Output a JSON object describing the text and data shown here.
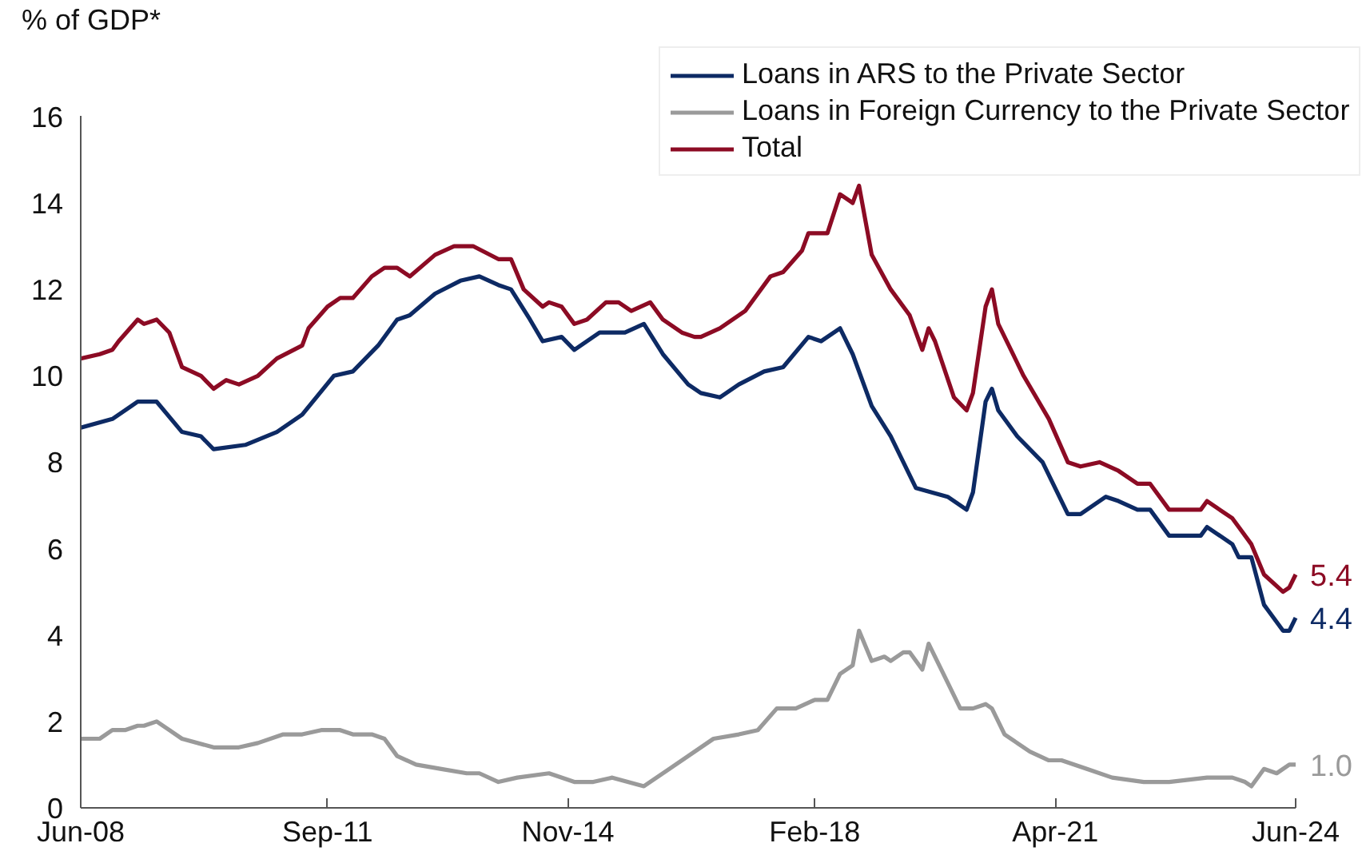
{
  "chart_data": {
    "type": "line",
    "ylabel": "% of GDP*",
    "legend": "top right",
    "xlim": [
      "2008-06",
      "2024-06"
    ],
    "ylim": [
      0,
      16
    ],
    "xticks": [
      {
        "value": "2008-06",
        "label": "Jun-08"
      },
      {
        "value": "2011-09",
        "label": "Sep-11"
      },
      {
        "value": "2014-11",
        "label": "Nov-14"
      },
      {
        "value": "2018-02",
        "label": "Feb-18"
      },
      {
        "value": "2021-04",
        "label": "Apr-21"
      },
      {
        "value": "2024-06",
        "label": "Jun-24"
      }
    ],
    "yticks": [
      0,
      2,
      4,
      6,
      8,
      10,
      12,
      14,
      16
    ],
    "annotations": [
      {
        "text": "5.4",
        "x": "2024-06",
        "y": 5.4
      },
      {
        "text": "4.4",
        "x": "2024-06",
        "y": 4.4
      },
      {
        "text": "1.0",
        "x": "2024-06",
        "y": 1.0
      }
    ],
    "series": [
      {
        "name": "Loans in ARS to the Private Sector",
        "color": "#0d2a64",
        "x": [
          "2008-06",
          "2008-11",
          "2009-03",
          "2009-06",
          "2009-10",
          "2010-01",
          "2010-03",
          "2010-08",
          "2011-01",
          "2011-05",
          "2011-10",
          "2012-01",
          "2012-05",
          "2012-08",
          "2012-10",
          "2013-02",
          "2013-06",
          "2013-09",
          "2013-12",
          "2014-02",
          "2014-05",
          "2014-07",
          "2014-10",
          "2014-12",
          "2015-04",
          "2015-08",
          "2015-11",
          "2016-02",
          "2016-06",
          "2016-08",
          "2016-11",
          "2017-02",
          "2017-06",
          "2017-09",
          "2018-01",
          "2018-03",
          "2018-06",
          "2018-08",
          "2018-11",
          "2019-02",
          "2019-06",
          "2019-11",
          "2020-02",
          "2020-03",
          "2020-05",
          "2020-06",
          "2020-07",
          "2020-10",
          "2021-02",
          "2021-06",
          "2021-08",
          "2021-12",
          "2022-02",
          "2022-05",
          "2022-07",
          "2022-10",
          "2023-03",
          "2023-04",
          "2023-08",
          "2023-09",
          "2023-11",
          "2024-01",
          "2024-04",
          "2024-05",
          "2024-06"
        ],
        "values": [
          8.8,
          9.0,
          9.4,
          9.4,
          8.7,
          8.6,
          8.3,
          8.4,
          8.7,
          9.1,
          10.0,
          10.1,
          10.7,
          11.3,
          11.4,
          11.9,
          12.2,
          12.3,
          12.1,
          12.0,
          11.3,
          10.8,
          10.9,
          10.6,
          11.0,
          11.0,
          11.2,
          10.5,
          9.8,
          9.6,
          9.5,
          9.8,
          10.1,
          10.2,
          10.9,
          10.8,
          11.1,
          10.5,
          9.3,
          8.6,
          7.4,
          7.2,
          6.9,
          7.3,
          9.4,
          9.7,
          9.2,
          8.6,
          8.0,
          6.8,
          6.8,
          7.2,
          7.1,
          6.9,
          6.9,
          6.3,
          6.3,
          6.5,
          6.1,
          5.8,
          5.8,
          4.7,
          4.1,
          4.1,
          4.4
        ]
      },
      {
        "name": "Loans in Foreign Currency to the Private Sector",
        "color": "#9a9a9a",
        "x": [
          "2008-06",
          "2008-09",
          "2008-11",
          "2009-01",
          "2009-03",
          "2009-04",
          "2009-06",
          "2009-08",
          "2009-10",
          "2010-03",
          "2010-07",
          "2010-10",
          "2011-02",
          "2011-05",
          "2011-08",
          "2011-11",
          "2012-01",
          "2012-04",
          "2012-06",
          "2012-08",
          "2012-11",
          "2013-03",
          "2013-07",
          "2013-09",
          "2013-12",
          "2014-03",
          "2014-08",
          "2014-12",
          "2015-03",
          "2015-06",
          "2015-11",
          "2016-03",
          "2016-10",
          "2017-02",
          "2017-05",
          "2017-08",
          "2017-11",
          "2018-02",
          "2018-04",
          "2018-06",
          "2018-08",
          "2018-09",
          "2018-11",
          "2019-01",
          "2019-02",
          "2019-04",
          "2019-05",
          "2019-07",
          "2019-08",
          "2019-11",
          "2020-01",
          "2020-03",
          "2020-05",
          "2020-06",
          "2020-08",
          "2020-12",
          "2021-03",
          "2021-05",
          "2021-09",
          "2022-01",
          "2022-06",
          "2022-10",
          "2023-04",
          "2023-08",
          "2023-10",
          "2023-11",
          "2024-01",
          "2024-03",
          "2024-05",
          "2024-06"
        ],
        "values": [
          1.6,
          1.6,
          1.8,
          1.8,
          1.9,
          1.9,
          2.0,
          1.8,
          1.6,
          1.4,
          1.4,
          1.5,
          1.7,
          1.7,
          1.8,
          1.8,
          1.7,
          1.7,
          1.6,
          1.2,
          1.0,
          0.9,
          0.8,
          0.8,
          0.6,
          0.7,
          0.8,
          0.6,
          0.6,
          0.7,
          0.5,
          0.9,
          1.6,
          1.7,
          1.8,
          2.3,
          2.3,
          2.5,
          2.5,
          3.1,
          3.3,
          4.1,
          3.4,
          3.5,
          3.4,
          3.6,
          3.6,
          3.2,
          3.8,
          2.9,
          2.3,
          2.3,
          2.4,
          2.3,
          1.7,
          1.3,
          1.1,
          1.1,
          0.9,
          0.7,
          0.6,
          0.6,
          0.7,
          0.7,
          0.6,
          0.5,
          0.9,
          0.8,
          1.0,
          1.0
        ]
      },
      {
        "name": "Total",
        "color": "#8c0b24",
        "x": [
          "2008-06",
          "2008-09",
          "2008-11",
          "2008-12",
          "2009-03",
          "2009-04",
          "2009-06",
          "2009-08",
          "2009-10",
          "2010-01",
          "2010-03",
          "2010-05",
          "2010-07",
          "2010-10",
          "2011-01",
          "2011-05",
          "2011-06",
          "2011-09",
          "2011-11",
          "2012-01",
          "2012-04",
          "2012-06",
          "2012-08",
          "2012-10",
          "2013-02",
          "2013-05",
          "2013-08",
          "2013-12",
          "2014-02",
          "2014-04",
          "2014-07",
          "2014-08",
          "2014-10",
          "2014-12",
          "2015-02",
          "2015-05",
          "2015-07",
          "2015-09",
          "2015-12",
          "2016-02",
          "2016-05",
          "2016-07",
          "2016-08",
          "2016-11",
          "2017-03",
          "2017-07",
          "2017-09",
          "2017-12",
          "2018-01",
          "2018-04",
          "2018-06",
          "2018-08",
          "2018-09",
          "2018-11",
          "2019-02",
          "2019-05",
          "2019-07",
          "2019-08",
          "2019-09",
          "2019-12",
          "2020-02",
          "2020-03",
          "2020-05",
          "2020-06",
          "2020-07",
          "2020-11",
          "2021-03",
          "2021-06",
          "2021-08",
          "2021-11",
          "2022-02",
          "2022-05",
          "2022-07",
          "2022-10",
          "2023-03",
          "2023-04",
          "2023-08",
          "2023-09",
          "2023-11",
          "2024-01",
          "2024-04",
          "2024-05",
          "2024-06"
        ],
        "values": [
          10.4,
          10.5,
          10.6,
          10.8,
          11.3,
          11.2,
          11.3,
          11.0,
          10.2,
          10.0,
          9.7,
          9.9,
          9.8,
          10.0,
          10.4,
          10.7,
          11.1,
          11.6,
          11.8,
          11.8,
          12.3,
          12.5,
          12.5,
          12.3,
          12.8,
          13.0,
          13.0,
          12.7,
          12.7,
          12.0,
          11.6,
          11.7,
          11.6,
          11.2,
          11.3,
          11.7,
          11.7,
          11.5,
          11.7,
          11.3,
          11.0,
          10.9,
          10.9,
          11.1,
          11.5,
          12.3,
          12.4,
          12.9,
          13.3,
          13.3,
          14.2,
          14.0,
          14.4,
          12.8,
          12.0,
          11.4,
          10.6,
          11.1,
          10.8,
          9.5,
          9.2,
          9.6,
          11.6,
          12.0,
          11.2,
          10.0,
          9.0,
          8.0,
          7.9,
          8.0,
          7.8,
          7.5,
          7.5,
          6.9,
          6.9,
          7.1,
          6.7,
          6.5,
          6.1,
          5.4,
          5.0,
          5.1,
          5.4
        ]
      }
    ]
  }
}
